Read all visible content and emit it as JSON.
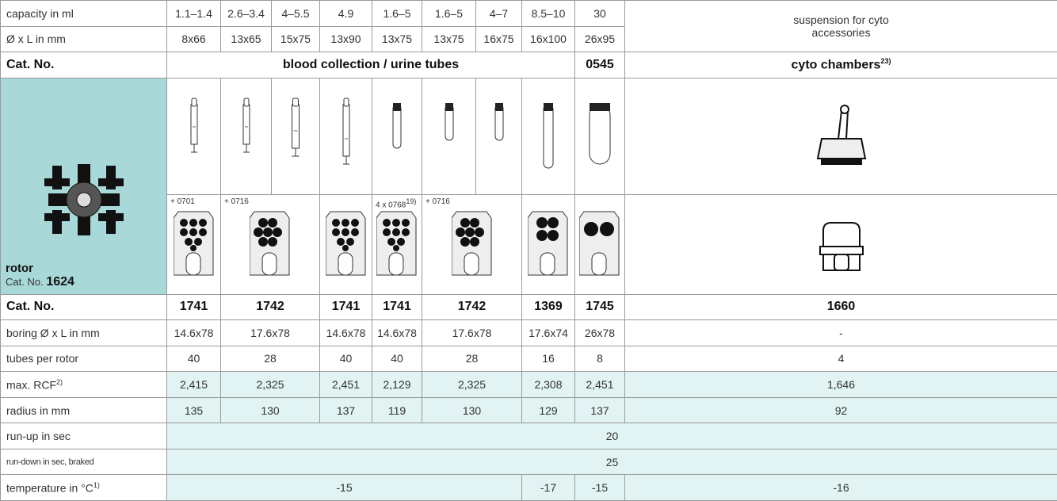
{
  "top_rows": [
    {
      "label": "capacity in ml",
      "values": [
        "1.1–1.4",
        "2.6–3.4",
        "4–5.5",
        "4.9",
        "1.6–5",
        "1.6–5",
        "4–7",
        "8.5–10",
        "30"
      ]
    },
    {
      "label": "Ø x L in mm",
      "values": [
        "8x66",
        "13x65",
        "15x75",
        "13x90",
        "13x75",
        "13x75",
        "16x75",
        "16x100",
        "26x95"
      ]
    }
  ],
  "suspension": "suspension for cyto accessories",
  "cat_header": {
    "label": "Cat. No.",
    "group": "blood collection / urine tubes",
    "code": "0545",
    "cyto": "cyto chambers",
    "cyto_note": "23)"
  },
  "rotor": {
    "label": "rotor",
    "cat_label": "Cat. No.",
    "cat_no": "1624"
  },
  "adapters": [
    {
      "text": "+ 0701"
    },
    {
      "text": "+ 0716"
    },
    {
      "text": "4 x 0768",
      "note": "19)"
    },
    {
      "text": "+ 0716"
    }
  ],
  "spec_rows": [
    {
      "label": "Cat. No.",
      "values": [
        "1741",
        "1742",
        "1741",
        "1741",
        "1742",
        "1369",
        "1745",
        "1660"
      ]
    },
    {
      "label": "boring Ø x L in mm",
      "values": [
        "14.6x78",
        "17.6x78",
        "14.6x78",
        "14.6x78",
        "17.6x78",
        "17.6x74",
        "26x78",
        "-"
      ]
    },
    {
      "label": "tubes per rotor",
      "values": [
        "40",
        "28",
        "40",
        "40",
        "28",
        "16",
        "8",
        "4"
      ]
    },
    {
      "label": "max. RCF",
      "note": "2)",
      "values": [
        "2,415",
        "2,325",
        "2,451",
        "2,129",
        "2,325",
        "2,308",
        "2,451",
        "1,646"
      ]
    },
    {
      "label": "radius in mm",
      "values": [
        "135",
        "130",
        "137",
        "119",
        "130",
        "129",
        "137",
        "92"
      ]
    },
    {
      "label": "run-up in sec",
      "values": [
        "20"
      ]
    },
    {
      "label": "run-down in sec, braked",
      "values": [
        "25"
      ]
    },
    {
      "label": "temperature in °C",
      "note": "1)",
      "values": [
        "-15",
        "-17",
        "-15",
        "-16"
      ]
    }
  ]
}
